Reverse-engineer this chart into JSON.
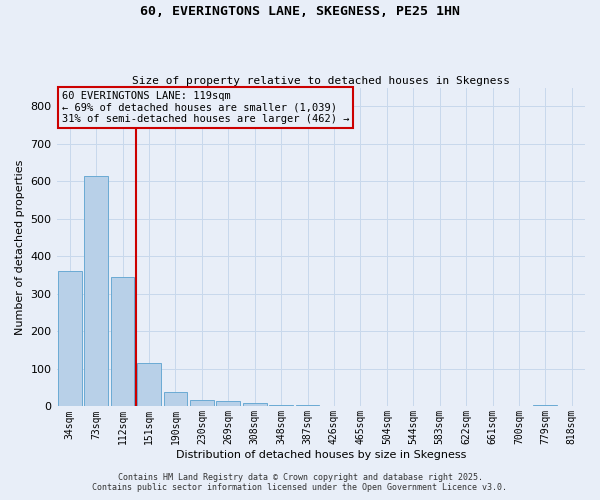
{
  "title": "60, EVERINGTONS LANE, SKEGNESS, PE25 1HN",
  "subtitle": "Size of property relative to detached houses in Skegness",
  "xlabel": "Distribution of detached houses by size in Skegness",
  "ylabel": "Number of detached properties",
  "categories": [
    "34sqm",
    "73sqm",
    "112sqm",
    "151sqm",
    "190sqm",
    "230sqm",
    "269sqm",
    "308sqm",
    "348sqm",
    "387sqm",
    "426sqm",
    "465sqm",
    "504sqm",
    "544sqm",
    "583sqm",
    "622sqm",
    "661sqm",
    "700sqm",
    "779sqm",
    "818sqm"
  ],
  "values": [
    360,
    615,
    345,
    115,
    38,
    18,
    15,
    8,
    5,
    5,
    0,
    0,
    0,
    0,
    0,
    0,
    0,
    0,
    5,
    0
  ],
  "bar_color": "#b8d0e8",
  "bar_edge_color": "#6aaad4",
  "background_color": "#e8eef8",
  "grid_color": "#c8d8ec",
  "annotation_line1": "60 EVERINGTONS LANE: 119sqm",
  "annotation_line2": "← 69% of detached houses are smaller (1,039)",
  "annotation_line3": "31% of semi-detached houses are larger (462) →",
  "vline_color": "#cc0000",
  "annotation_box_color": "#cc0000",
  "ylim": [
    0,
    850
  ],
  "yticks": [
    0,
    100,
    200,
    300,
    400,
    500,
    600,
    700,
    800
  ],
  "footer1": "Contains HM Land Registry data © Crown copyright and database right 2025.",
  "footer2": "Contains public sector information licensed under the Open Government Licence v3.0."
}
